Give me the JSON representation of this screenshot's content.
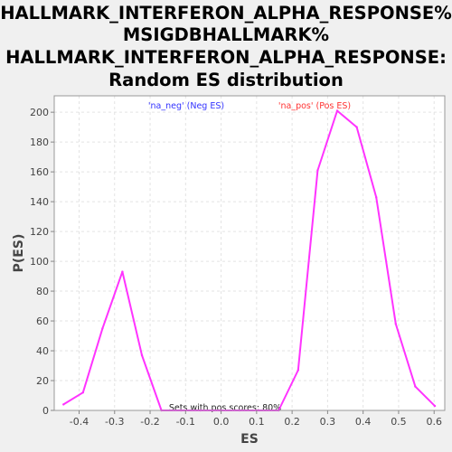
{
  "chart_data": {
    "type": "line",
    "title_lines": [
      "HALLMARK_INTERFERON_ALPHA_RESPONSE%",
      "MSIGDBHALLMARK%",
      "HALLMARK_INTERFERON_ALPHA_RESPONSE:",
      "Random ES distribution"
    ],
    "xlabel": "ES",
    "ylabel": "P(ES)",
    "xlim": [
      -0.47,
      0.63
    ],
    "ylim": [
      0,
      211
    ],
    "x_ticks": [
      -0.4,
      -0.3,
      -0.2,
      -0.1,
      0.0,
      0.1,
      0.2,
      0.3,
      0.4,
      0.5,
      0.6
    ],
    "x_tick_labels": [
      "-0.4",
      "-0.3",
      "-0.2",
      "-0.1",
      "0.0",
      "0.1",
      "0.2",
      "0.3",
      "0.4",
      "0.5",
      "0.6"
    ],
    "y_ticks": [
      0,
      20,
      40,
      60,
      80,
      100,
      120,
      140,
      160,
      180,
      200
    ],
    "y_tick_labels": [
      "0",
      "20",
      "40",
      "60",
      "80",
      "100",
      "120",
      "140",
      "160",
      "180",
      "200"
    ],
    "grid": true,
    "series": [
      {
        "color": "#ff33ff",
        "x": [
          -0.444,
          -0.389,
          -0.334,
          -0.278,
          -0.223,
          -0.168,
          -0.113,
          -0.058,
          -0.003,
          0.052,
          0.107,
          0.162,
          0.217,
          0.272,
          0.327,
          0.382,
          0.437,
          0.492,
          0.547,
          0.602
        ],
        "y": [
          4,
          12,
          55,
          93,
          37,
          0,
          0,
          0,
          0,
          0,
          0,
          0,
          27,
          161,
          201,
          190,
          143,
          58,
          16,
          3
        ]
      }
    ],
    "annotations": {
      "neg_label": "'na_neg' (Neg ES)",
      "neg_color": "#3333ff",
      "pos_label": "'na_pos' (Pos ES)",
      "pos_color": "#ff3333",
      "footnote": "Sets with pos scores: 80%"
    }
  }
}
